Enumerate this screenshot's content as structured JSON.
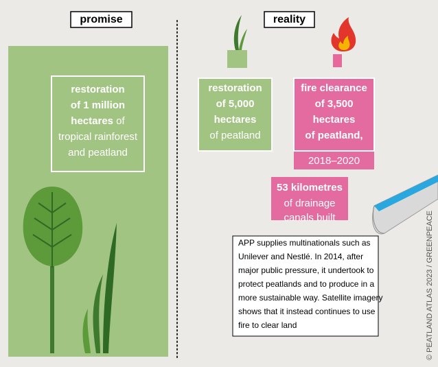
{
  "header": {
    "promise": "promise",
    "reality": "reality"
  },
  "promise_box": {
    "lines": [
      [
        {
          "text": "restoration",
          "bold": true
        }
      ],
      [
        {
          "text": "of 1 million",
          "bold": true
        }
      ],
      [
        {
          "text": "hectares",
          "bold": true
        },
        {
          "text": " of",
          "bold": false
        }
      ],
      [
        {
          "text": "tropical rainforest",
          "bold": false
        }
      ],
      [
        {
          "text": "and peatland",
          "bold": false
        }
      ]
    ]
  },
  "reality_boxes": [
    {
      "lines": [
        [
          {
            "text": "restoration",
            "bold": true
          }
        ],
        [
          {
            "text": "of 5,000",
            "bold": true
          }
        ],
        [
          {
            "text": "hectares",
            "bold": true
          }
        ],
        [
          {
            "text": "of peatland",
            "bold": false
          }
        ]
      ]
    },
    {
      "lines": [
        [
          {
            "text": "fire clearance",
            "bold": true
          }
        ],
        [
          {
            "text": "of 3,500",
            "bold": true
          }
        ],
        [
          {
            "text": "hectares",
            "bold": true
          }
        ],
        [
          {
            "text": "of peatland,",
            "bold": true
          }
        ],
        [
          {
            "text": "2018–2020",
            "bold": false
          }
        ]
      ]
    },
    {
      "lines": [
        [
          {
            "text": "53 kilometres",
            "bold": true
          }
        ],
        [
          {
            "text": "of drainage",
            "bold": false
          }
        ],
        [
          {
            "text": "canals built",
            "bold": false
          }
        ]
      ]
    }
  ],
  "note": {
    "lines": [
      "APP supplies multinationals such as",
      "Unilever and Nestlé. In 2014, after",
      "major public pressure, it undertook to",
      "protect peatlands and to produce in a",
      "more sustainable way. Satellite imagery",
      "shows that it instead continues to use",
      "fire to clear land"
    ]
  },
  "credit": "© PEATLAND ATLAS 2023 / GREENPEACE"
}
